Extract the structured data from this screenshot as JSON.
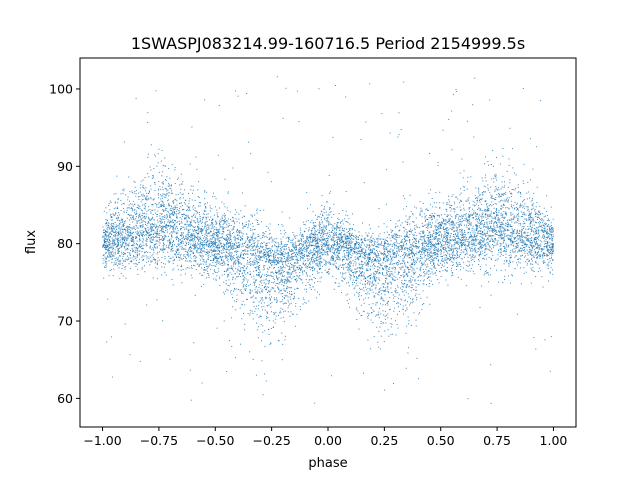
{
  "chart_data": {
    "type": "scatter",
    "title": "1SWASPJ083214.99-160716.5 Period 2154999.5s",
    "xlabel": "phase",
    "ylabel": "flux",
    "xlim": [
      -1.1,
      1.1
    ],
    "ylim": [
      56.3,
      104.0
    ],
    "grid": false,
    "legend": "none",
    "marker_color": "#1f77b4",
    "x_ticks": [
      {
        "value": -1.0,
        "label": "−1.00"
      },
      {
        "value": -0.75,
        "label": "−0.75"
      },
      {
        "value": -0.5,
        "label": "−0.50"
      },
      {
        "value": -0.25,
        "label": "−0.25"
      },
      {
        "value": 0.0,
        "label": "0.00"
      },
      {
        "value": 0.25,
        "label": "0.25"
      },
      {
        "value": 0.5,
        "label": "0.50"
      },
      {
        "value": 0.75,
        "label": "0.75"
      },
      {
        "value": 1.0,
        "label": "1.00"
      }
    ],
    "y_ticks": [
      {
        "value": 60,
        "label": "60"
      },
      {
        "value": 70,
        "label": "70"
      },
      {
        "value": 80,
        "label": "80"
      },
      {
        "value": 90,
        "label": "90"
      },
      {
        "value": 100,
        "label": "100"
      }
    ],
    "phase_profile": {
      "phase": [
        0.0,
        0.05,
        0.1,
        0.15,
        0.2,
        0.25,
        0.3,
        0.35,
        0.4,
        0.45,
        0.5,
        0.55,
        0.6,
        0.65,
        0.7,
        0.75,
        0.8,
        0.85,
        0.9,
        0.95,
        1.0
      ],
      "upper_envelope": [
        86,
        84,
        83,
        82,
        82,
        82,
        84,
        85,
        85,
        86,
        86,
        87,
        88,
        89,
        90,
        90,
        92,
        89,
        88,
        86,
        84
      ],
      "median_flux": [
        80,
        80,
        79,
        78,
        77.5,
        77.5,
        78,
        78.5,
        79,
        79.5,
        80,
        80.5,
        81,
        81.5,
        82,
        82.5,
        82,
        81.5,
        81,
        80.5,
        80
      ],
      "lower_envelope": [
        76,
        74,
        72,
        70,
        68,
        67,
        66,
        68,
        71,
        74,
        75,
        75,
        76,
        76,
        76,
        76,
        76,
        76,
        76,
        76,
        76
      ]
    }
  }
}
